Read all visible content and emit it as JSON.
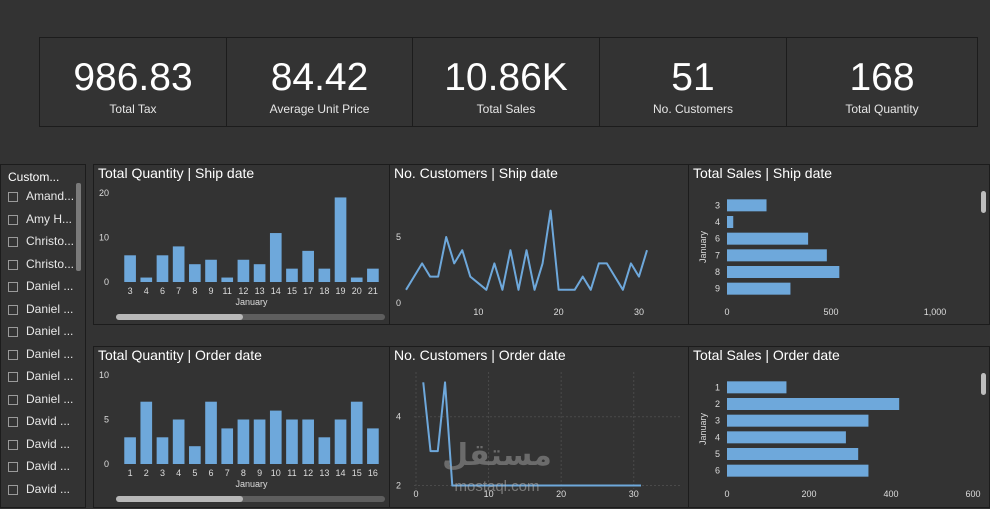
{
  "kpis": [
    {
      "value": "986.83",
      "label": "Total Tax"
    },
    {
      "value": "84.42",
      "label": "Average Unit Price"
    },
    {
      "value": "10.86K",
      "label": "Total Sales"
    },
    {
      "value": "51",
      "label": "No. Customers"
    },
    {
      "value": "168",
      "label": "Total Quantity"
    }
  ],
  "slicer": {
    "title": "Custom...",
    "items": [
      "Amand...",
      "Amy H...",
      "Christo...",
      "Christo...",
      "Daniel ...",
      "Daniel ...",
      "Daniel ...",
      "Daniel ...",
      "Daniel ...",
      "Daniel ...",
      "David ...",
      "David ...",
      "David ...",
      "David ..."
    ]
  },
  "colors": {
    "bar": "#6ea8db",
    "background": "#333333",
    "border": "#1c1c1c"
  },
  "watermark": {
    "arabic": "مستقل",
    "latin": "mostaql.com"
  },
  "chart_data": [
    {
      "type": "bar",
      "title": "Total Quantity | Ship date",
      "xlabel": "January",
      "categories": [
        "3",
        "4",
        "6",
        "7",
        "8",
        "9",
        "11",
        "12",
        "13",
        "14",
        "15",
        "17",
        "18",
        "19",
        "20",
        "21"
      ],
      "values": [
        6,
        1,
        6,
        8,
        4,
        5,
        1,
        5,
        4,
        11,
        3,
        7,
        3,
        19,
        1,
        3
      ],
      "ylim": [
        0,
        20
      ],
      "yticks": [
        "0",
        "10",
        "20"
      ]
    },
    {
      "type": "line",
      "title": "No. Customers | Ship date",
      "x": [
        1,
        2,
        3,
        4,
        5,
        6,
        7,
        8,
        9,
        10,
        11,
        12,
        13,
        14,
        15,
        16,
        17,
        18,
        19,
        20,
        21,
        22,
        23,
        24,
        25,
        26,
        27,
        28,
        29,
        30,
        31
      ],
      "values": [
        1,
        2,
        3,
        2,
        2,
        5,
        3,
        4,
        2,
        1.5,
        1,
        3,
        1,
        4,
        1,
        4,
        1,
        3,
        7,
        1,
        1,
        1,
        2,
        1,
        3,
        3,
        2,
        1,
        3,
        2,
        4
      ],
      "xticks": [
        "10",
        "20",
        "30"
      ],
      "yticks": [
        "0",
        "5"
      ],
      "ylim": [
        0,
        7.5
      ]
    },
    {
      "type": "bar",
      "orientation": "horizontal",
      "title": "Total Sales | Ship date",
      "ylabel": "January",
      "categories": [
        "3",
        "4",
        "6",
        "7",
        "8",
        "9"
      ],
      "values": [
        190,
        30,
        390,
        480,
        540,
        305
      ],
      "xlim": [
        0,
        1000
      ],
      "xticks": [
        "0",
        "500",
        "1,000"
      ]
    },
    {
      "type": "bar",
      "title": "Total Quantity | Order date",
      "xlabel": "January",
      "categories": [
        "1",
        "2",
        "3",
        "4",
        "5",
        "6",
        "7",
        "8",
        "9",
        "10",
        "11",
        "12",
        "13",
        "14",
        "15",
        "16"
      ],
      "values": [
        3,
        7,
        3,
        5,
        2,
        7,
        4,
        5,
        5,
        6,
        5,
        5,
        3,
        5,
        7,
        4
      ],
      "ylim": [
        0,
        10
      ],
      "yticks": [
        "0",
        "5",
        "10"
      ]
    },
    {
      "type": "line",
      "title": "No. Customers | Order date",
      "x": [
        1,
        2,
        3,
        4,
        5,
        6,
        7,
        8,
        9,
        10,
        11,
        12,
        13,
        14,
        15,
        16,
        17,
        18,
        19,
        20,
        21,
        22,
        23,
        24,
        25,
        26,
        27,
        28,
        29,
        30,
        31
      ],
      "values": [
        5,
        3,
        3,
        5,
        2,
        2,
        2,
        2,
        2,
        2,
        2,
        2,
        2,
        2,
        2,
        2,
        2,
        2,
        2,
        2,
        2,
        2,
        2,
        2,
        2,
        2,
        2,
        2,
        2,
        2,
        2
      ],
      "xticks": [
        "0",
        "10",
        "20",
        "30"
      ],
      "yticks": [
        "2",
        "4"
      ],
      "ylim": [
        1.9,
        5.3
      ]
    },
    {
      "type": "bar",
      "orientation": "horizontal",
      "title": "Total Sales | Order date",
      "ylabel": "January",
      "categories": [
        "1",
        "2",
        "3",
        "4",
        "5",
        "6"
      ],
      "values": [
        145,
        420,
        345,
        290,
        320,
        345
      ],
      "xlim": [
        0,
        600
      ],
      "xticks": [
        "0",
        "200",
        "400",
        "600"
      ]
    }
  ]
}
